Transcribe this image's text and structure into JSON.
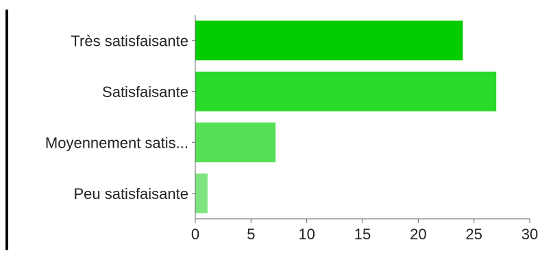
{
  "chart_data": {
    "type": "bar",
    "orientation": "horizontal",
    "categories": [
      "Très satisfaisante",
      "Satisfaisante",
      "Moyennement satis...",
      "Peu satisfaisante"
    ],
    "values": [
      24,
      27,
      7.2,
      1.1
    ],
    "bar_colors": [
      "#00cc00",
      "#2ad92a",
      "#55e055",
      "#7ee47e"
    ],
    "xlim": [
      0,
      30
    ],
    "xticks": [
      "0",
      "5",
      "10",
      "15",
      "20",
      "25",
      "30"
    ],
    "title": "",
    "xlabel": "",
    "ylabel": "",
    "grid": false,
    "legend": "none"
  }
}
